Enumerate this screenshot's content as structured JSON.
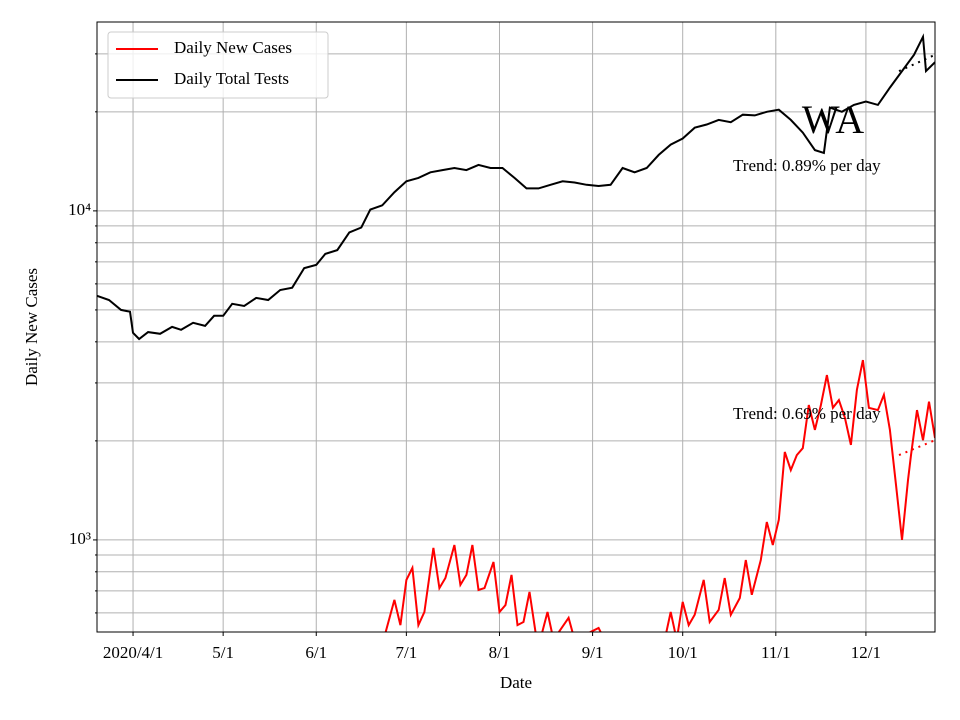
{
  "chart_data": {
    "type": "line",
    "ylabel": "Daily New Cases",
    "xlabel": "Date",
    "yscale": "log",
    "grid": true,
    "legend": "upper left",
    "xlim": [
      "2020-03-20",
      "2020-12-24"
    ],
    "xticks": [
      {
        "value": "2020-04-01",
        "label": "2020/4/1"
      },
      {
        "value": "2020-05-01",
        "label": "5/1"
      },
      {
        "value": "2020-06-01",
        "label": "6/1"
      },
      {
        "value": "2020-07-01",
        "label": "7/1"
      },
      {
        "value": "2020-08-01",
        "label": "8/1"
      },
      {
        "value": "2020-09-01",
        "label": "9/1"
      },
      {
        "value": "2020-10-01",
        "label": "10/1"
      },
      {
        "value": "2020-11-01",
        "label": "11/1"
      },
      {
        "value": "2020-12-01",
        "label": "12/1"
      }
    ],
    "ylim": [
      525,
      37500
    ],
    "yticks": [
      {
        "value": 1000,
        "label": "10³"
      },
      {
        "value": 10000,
        "label": "10⁴"
      }
    ],
    "minor_yticks": [
      600,
      700,
      800,
      900,
      2000,
      3000,
      4000,
      5000,
      6000,
      7000,
      8000,
      9000,
      20000,
      30000
    ],
    "series": [
      {
        "name": "Daily New Cases",
        "color": "#ff0000",
        "x": [
          "2020-06-24",
          "2020-06-27",
          "2020-06-29",
          "2020-07-01",
          "2020-07-03",
          "2020-07-05",
          "2020-07-07",
          "2020-07-10",
          "2020-07-12",
          "2020-07-14",
          "2020-07-17",
          "2020-07-19",
          "2020-07-21",
          "2020-07-23",
          "2020-07-25",
          "2020-07-27",
          "2020-07-30",
          "2020-08-01",
          "2020-08-03",
          "2020-08-05",
          "2020-08-07",
          "2020-08-09",
          "2020-08-11",
          "2020-08-13",
          "2020-08-15",
          "2020-08-17",
          "2020-08-19",
          "2020-08-24",
          "2020-08-26",
          "2020-09-03",
          "2020-09-05",
          "2020-09-25",
          "2020-09-27",
          "2020-09-29",
          "2020-10-01",
          "2020-10-03",
          "2020-10-05",
          "2020-10-08",
          "2020-10-10",
          "2020-10-13",
          "2020-10-15",
          "2020-10-17",
          "2020-10-20",
          "2020-10-22",
          "2020-10-24",
          "2020-10-27",
          "2020-10-29",
          "2020-10-31",
          "2020-11-02",
          "2020-11-04",
          "2020-11-06",
          "2020-11-08",
          "2020-11-10",
          "2020-11-12",
          "2020-11-14",
          "2020-11-16",
          "2020-11-18",
          "2020-11-20",
          "2020-11-22",
          "2020-11-24",
          "2020-11-26",
          "2020-11-28",
          "2020-11-30",
          "2020-12-02",
          "2020-12-05",
          "2020-12-07",
          "2020-12-09",
          "2020-12-11",
          "2020-12-13",
          "2020-12-15",
          "2020-12-16",
          "2020-12-18",
          "2020-12-20",
          "2020-12-22",
          "2020-12-24"
        ],
        "values": [
          520,
          657,
          551,
          756,
          822,
          551,
          604,
          946,
          714,
          766,
          965,
          730,
          783,
          965,
          705,
          714,
          857,
          604,
          634,
          783,
          551,
          563,
          695,
          525,
          514,
          604,
          497,
          580,
          497,
          540,
          497,
          497,
          604,
          497,
          648,
          551,
          592,
          756,
          563,
          613,
          766,
          592,
          666,
          869,
          681,
          869,
          1134,
          965,
          1150,
          1850,
          1630,
          1810,
          1900,
          2570,
          2160,
          2570,
          3170,
          2520,
          2660,
          2350,
          1945,
          2860,
          3520,
          2520,
          2480,
          2760,
          2160,
          1470,
          1000,
          1520,
          1810,
          2480,
          2010,
          2630,
          2040
        ]
      },
      {
        "name": "Daily Total Tests",
        "color": "#000000",
        "x": [
          "2020-03-20",
          "2020-03-24",
          "2020-03-28",
          "2020-03-31",
          "2020-04-01",
          "2020-04-03",
          "2020-04-06",
          "2020-04-10",
          "2020-04-14",
          "2020-04-17",
          "2020-04-21",
          "2020-04-25",
          "2020-04-28",
          "2020-05-01",
          "2020-05-04",
          "2020-05-08",
          "2020-05-12",
          "2020-05-16",
          "2020-05-20",
          "2020-05-24",
          "2020-05-28",
          "2020-06-01",
          "2020-06-04",
          "2020-06-08",
          "2020-06-12",
          "2020-06-16",
          "2020-06-19",
          "2020-06-23",
          "2020-06-27",
          "2020-07-01",
          "2020-07-05",
          "2020-07-09",
          "2020-07-13",
          "2020-07-17",
          "2020-07-21",
          "2020-07-25",
          "2020-07-29",
          "2020-08-02",
          "2020-08-06",
          "2020-08-10",
          "2020-08-14",
          "2020-08-18",
          "2020-08-22",
          "2020-08-26",
          "2020-08-30",
          "2020-09-03",
          "2020-09-07",
          "2020-09-11",
          "2020-09-15",
          "2020-09-19",
          "2020-09-23",
          "2020-09-27",
          "2020-10-01",
          "2020-10-05",
          "2020-10-09",
          "2020-10-13",
          "2020-10-17",
          "2020-10-21",
          "2020-10-25",
          "2020-10-29",
          "2020-11-02",
          "2020-11-06",
          "2020-11-10",
          "2020-11-14",
          "2020-11-17",
          "2020-11-19",
          "2020-11-23",
          "2020-11-27",
          "2020-12-01",
          "2020-12-05",
          "2020-12-09",
          "2020-12-13",
          "2020-12-17",
          "2020-12-20",
          "2020-12-21",
          "2020-12-24"
        ],
        "values": [
          5520,
          5360,
          5000,
          4940,
          4260,
          4080,
          4280,
          4230,
          4440,
          4350,
          4570,
          4470,
          4800,
          4800,
          5220,
          5140,
          5440,
          5360,
          5750,
          5840,
          6700,
          6850,
          7400,
          7600,
          8600,
          8900,
          10100,
          10400,
          11400,
          12300,
          12600,
          13100,
          13300,
          13500,
          13300,
          13800,
          13500,
          13500,
          12600,
          11700,
          11700,
          12000,
          12300,
          12200,
          12000,
          11900,
          12000,
          13500,
          13100,
          13500,
          14800,
          15900,
          16600,
          17900,
          18300,
          18900,
          18600,
          19600,
          19500,
          20000,
          20300,
          18900,
          17300,
          15300,
          15000,
          20600,
          20000,
          21000,
          21500,
          21000,
          23700,
          26600,
          29800,
          33800,
          26600,
          28300
        ]
      }
    ],
    "trend_lines": [
      {
        "color": "#000000",
        "x": [
          "2020-12-12",
          "2020-12-24"
        ],
        "values": [
          26600,
          29800
        ]
      },
      {
        "color": "#ff0000",
        "x": [
          "2020-12-12",
          "2020-12-24"
        ],
        "values": [
          1810,
          2010
        ]
      }
    ],
    "annotations": [
      "WA",
      "Trend: 0.89% per day",
      "Trend: 0.69% per day"
    ]
  }
}
